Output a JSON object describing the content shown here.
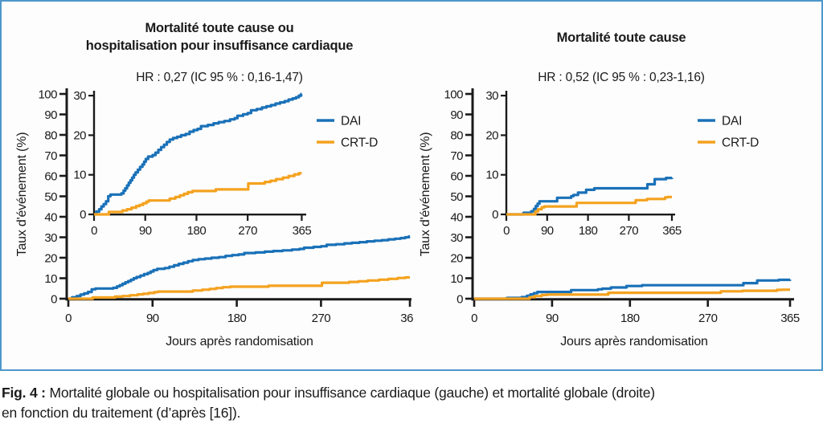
{
  "figure": {
    "caption_prefix": "Fig. 4 :",
    "caption_line1": " Mortalité globale ou hospitalisation pour insuffisance cardiaque (gauche) et mortalité globale (droite)",
    "caption_line2": "en fonction du traitement (d’après [16]).",
    "border_color": "#4f96cb"
  },
  "colors": {
    "dai": "#1a71b8",
    "crtd": "#f4a21f",
    "axis": "#1a1a1a",
    "text": "#1a1a1a"
  },
  "chart_data": [
    {
      "type": "line",
      "title_line1": "Mortalité toute cause ou",
      "title_line2": "hospitalisation pour insuffisance cardiaque",
      "hr_text": "HR : 0,27 (IC 95 % : 0,16-1,47)",
      "xlabel": "Jours après randomisation",
      "ylabel": "Taux d'événement (%)",
      "xlim": [
        0,
        365
      ],
      "x_ticks": [
        0,
        90,
        180,
        270,
        365
      ],
      "main_ylim": [
        0,
        100
      ],
      "main_yticks": [
        0,
        10,
        20,
        30,
        40,
        50,
        60,
        70,
        80,
        90,
        100
      ],
      "inset_ylim": [
        0,
        30
      ],
      "inset_yticks": [
        0,
        10,
        20,
        30
      ],
      "legend_position": "right-of-inset",
      "grid": false,
      "series": [
        {
          "name": "DAI",
          "color_key": "dai",
          "points": [
            [
              0,
              0
            ],
            [
              4,
              0.7
            ],
            [
              9,
              1.3
            ],
            [
              13,
              2.0
            ],
            [
              17,
              2.6
            ],
            [
              21,
              3.3
            ],
            [
              25,
              4.6
            ],
            [
              29,
              5.0
            ],
            [
              48,
              5.3
            ],
            [
              52,
              6.0
            ],
            [
              55,
              6.6
            ],
            [
              58,
              7.3
            ],
            [
              61,
              8.0
            ],
            [
              64,
              8.6
            ],
            [
              67,
              9.3
            ],
            [
              70,
              10.0
            ],
            [
              73,
              10.6
            ],
            [
              77,
              11.3
            ],
            [
              81,
              12.0
            ],
            [
              85,
              12.6
            ],
            [
              88,
              13.3
            ],
            [
              91,
              14.0
            ],
            [
              95,
              14.6
            ],
            [
              103,
              15.0
            ],
            [
              108,
              15.6
            ],
            [
              113,
              16.3
            ],
            [
              118,
              17.0
            ],
            [
              123,
              17.6
            ],
            [
              128,
              18.3
            ],
            [
              133,
              18.9
            ],
            [
              139,
              19.3
            ],
            [
              146,
              19.6
            ],
            [
              153,
              20.0
            ],
            [
              161,
              20.3
            ],
            [
              168,
              20.9
            ],
            [
              175,
              21.3
            ],
            [
              182,
              21.6
            ],
            [
              188,
              22.3
            ],
            [
              200,
              22.6
            ],
            [
              210,
              23.0
            ],
            [
              219,
              23.3
            ],
            [
              229,
              23.6
            ],
            [
              239,
              24.0
            ],
            [
              247,
              24.3
            ],
            [
              252,
              24.9
            ],
            [
              262,
              25.3
            ],
            [
              270,
              25.6
            ],
            [
              276,
              26.3
            ],
            [
              286,
              26.6
            ],
            [
              295,
              27.0
            ],
            [
              303,
              27.3
            ],
            [
              311,
              27.6
            ],
            [
              319,
              28.0
            ],
            [
              327,
              28.3
            ],
            [
              335,
              28.6
            ],
            [
              342,
              29.0
            ],
            [
              349,
              29.3
            ],
            [
              355,
              29.6
            ],
            [
              360,
              30.0
            ],
            [
              364,
              30.4
            ]
          ]
        },
        {
          "name": "CRT-D",
          "color_key": "crtd",
          "points": [
            [
              0,
              0
            ],
            [
              26,
              0.6
            ],
            [
              50,
              1.0
            ],
            [
              58,
              1.3
            ],
            [
              66,
              1.7
            ],
            [
              74,
              2.1
            ],
            [
              80,
              2.4
            ],
            [
              86,
              2.8
            ],
            [
              92,
              3.2
            ],
            [
              96,
              3.5
            ],
            [
              128,
              3.5
            ],
            [
              133,
              4.0
            ],
            [
              143,
              4.4
            ],
            [
              151,
              4.8
            ],
            [
              158,
              5.2
            ],
            [
              165,
              5.6
            ],
            [
              173,
              5.9
            ],
            [
              208,
              5.9
            ],
            [
              214,
              6.3
            ],
            [
              266,
              6.3
            ],
            [
              271,
              7.8
            ],
            [
              300,
              8.2
            ],
            [
              310,
              8.5
            ],
            [
              320,
              8.9
            ],
            [
              332,
              9.3
            ],
            [
              342,
              9.7
            ],
            [
              352,
              10.1
            ],
            [
              360,
              10.4
            ]
          ]
        }
      ]
    },
    {
      "type": "line",
      "title_line1": "Mortalité toute cause",
      "title_line2": "",
      "hr_text": "HR : 0,52 (IC 95 % : 0,23-1,16)",
      "xlabel": "Jours après randomisation",
      "ylabel": "Taux d'événement (%)",
      "xlim": [
        0,
        365
      ],
      "x_ticks": [
        0,
        90,
        180,
        270,
        365
      ],
      "main_ylim": [
        0,
        100
      ],
      "main_yticks": [
        0,
        10,
        20,
        30,
        40,
        50,
        60,
        70,
        80,
        90,
        100
      ],
      "inset_ylim": [
        0,
        30
      ],
      "inset_yticks": [
        0,
        10,
        20,
        30
      ],
      "legend_position": "right-of-inset",
      "grid": false,
      "series": [
        {
          "name": "DAI",
          "color_key": "dai",
          "points": [
            [
              0,
              0
            ],
            [
              38,
              0.4
            ],
            [
              55,
              0.8
            ],
            [
              61,
              1.4
            ],
            [
              65,
              2.1
            ],
            [
              69,
              2.7
            ],
            [
              73,
              3.3
            ],
            [
              108,
              3.3
            ],
            [
              112,
              4.2
            ],
            [
              143,
              4.6
            ],
            [
              148,
              4.9
            ],
            [
              158,
              5.5
            ],
            [
              176,
              6.2
            ],
            [
              194,
              6.6
            ],
            [
              306,
              6.6
            ],
            [
              311,
              7.6
            ],
            [
              327,
              8.9
            ],
            [
              352,
              9.2
            ],
            [
              365,
              9.3
            ]
          ]
        },
        {
          "name": "CRT-D",
          "color_key": "crtd",
          "points": [
            [
              0,
              0
            ],
            [
              60,
              0
            ],
            [
              64,
              0.7
            ],
            [
              70,
              1.3
            ],
            [
              78,
              1.8
            ],
            [
              84,
              2.0
            ],
            [
              150,
              2.0
            ],
            [
              155,
              2.9
            ],
            [
              280,
              2.9
            ],
            [
              285,
              3.6
            ],
            [
              310,
              3.9
            ],
            [
              350,
              4.3
            ],
            [
              356,
              4.4
            ]
          ]
        }
      ]
    }
  ]
}
